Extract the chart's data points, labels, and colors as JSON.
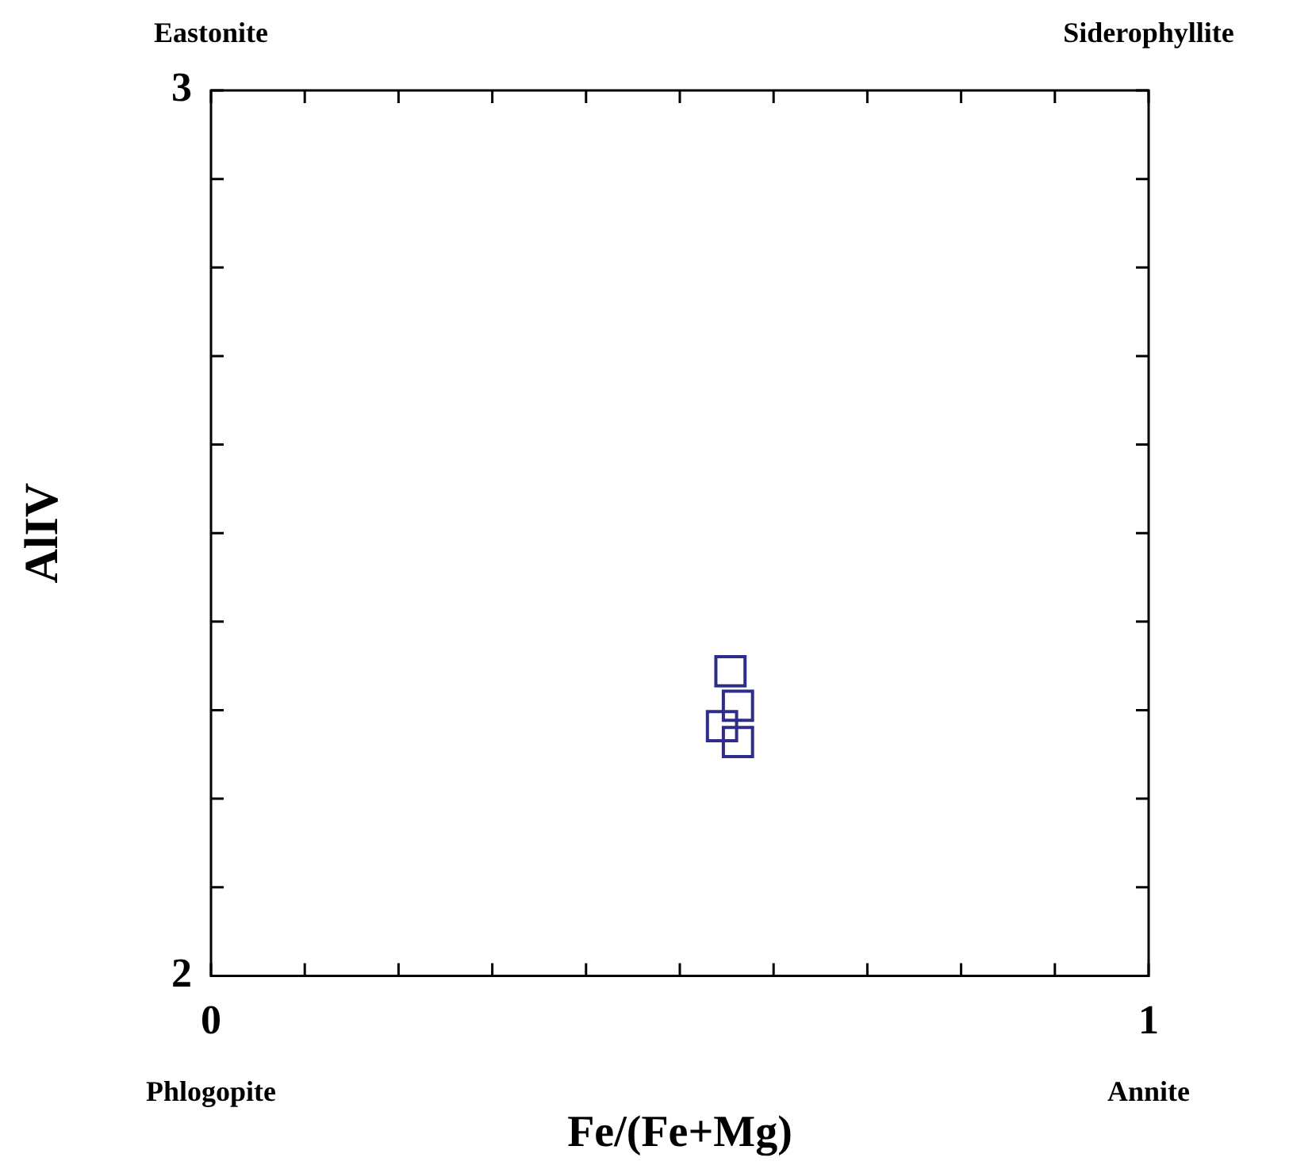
{
  "chart_data": {
    "type": "scatter",
    "xlabel": "Fe/(Fe+Mg)",
    "ylabel": "AlIV",
    "x": [
      0.554,
      0.562,
      0.545,
      0.562
    ],
    "series": [
      {
        "color": "#2e2e8a",
        "values": [
          2.344,
          2.305,
          2.282,
          2.264
        ]
      }
    ],
    "marker": "square",
    "xlim": [
      0,
      1
    ],
    "ylim": [
      2,
      3
    ],
    "xticks": [
      0,
      {
        "value": 0.1,
        "label": null
      },
      {
        "value": 0.2,
        "label": null
      },
      {
        "value": 0.3,
        "label": null
      },
      {
        "value": 0.4,
        "label": null
      },
      {
        "value": 0.5,
        "label": null
      },
      {
        "value": 0.6,
        "label": null
      },
      {
        "value": 0.7,
        "label": null
      },
      {
        "value": 0.8,
        "label": null
      },
      {
        "value": 0.9,
        "label": null
      },
      1
    ],
    "yticks": [
      2,
      {
        "value": 2.1,
        "label": null
      },
      {
        "value": 2.2,
        "label": null
      },
      {
        "value": 2.3,
        "label": null
      },
      {
        "value": 2.4,
        "label": null
      },
      {
        "value": 2.5,
        "label": null
      },
      {
        "value": 2.6,
        "label": null
      },
      {
        "value": 2.7,
        "label": null
      },
      {
        "value": 2.8,
        "label": null
      },
      {
        "value": 2.9,
        "label": null
      },
      3
    ],
    "annotations": [
      "Eastonite",
      "Siderophyllite",
      "Phlogopite",
      "Annite"
    ]
  }
}
